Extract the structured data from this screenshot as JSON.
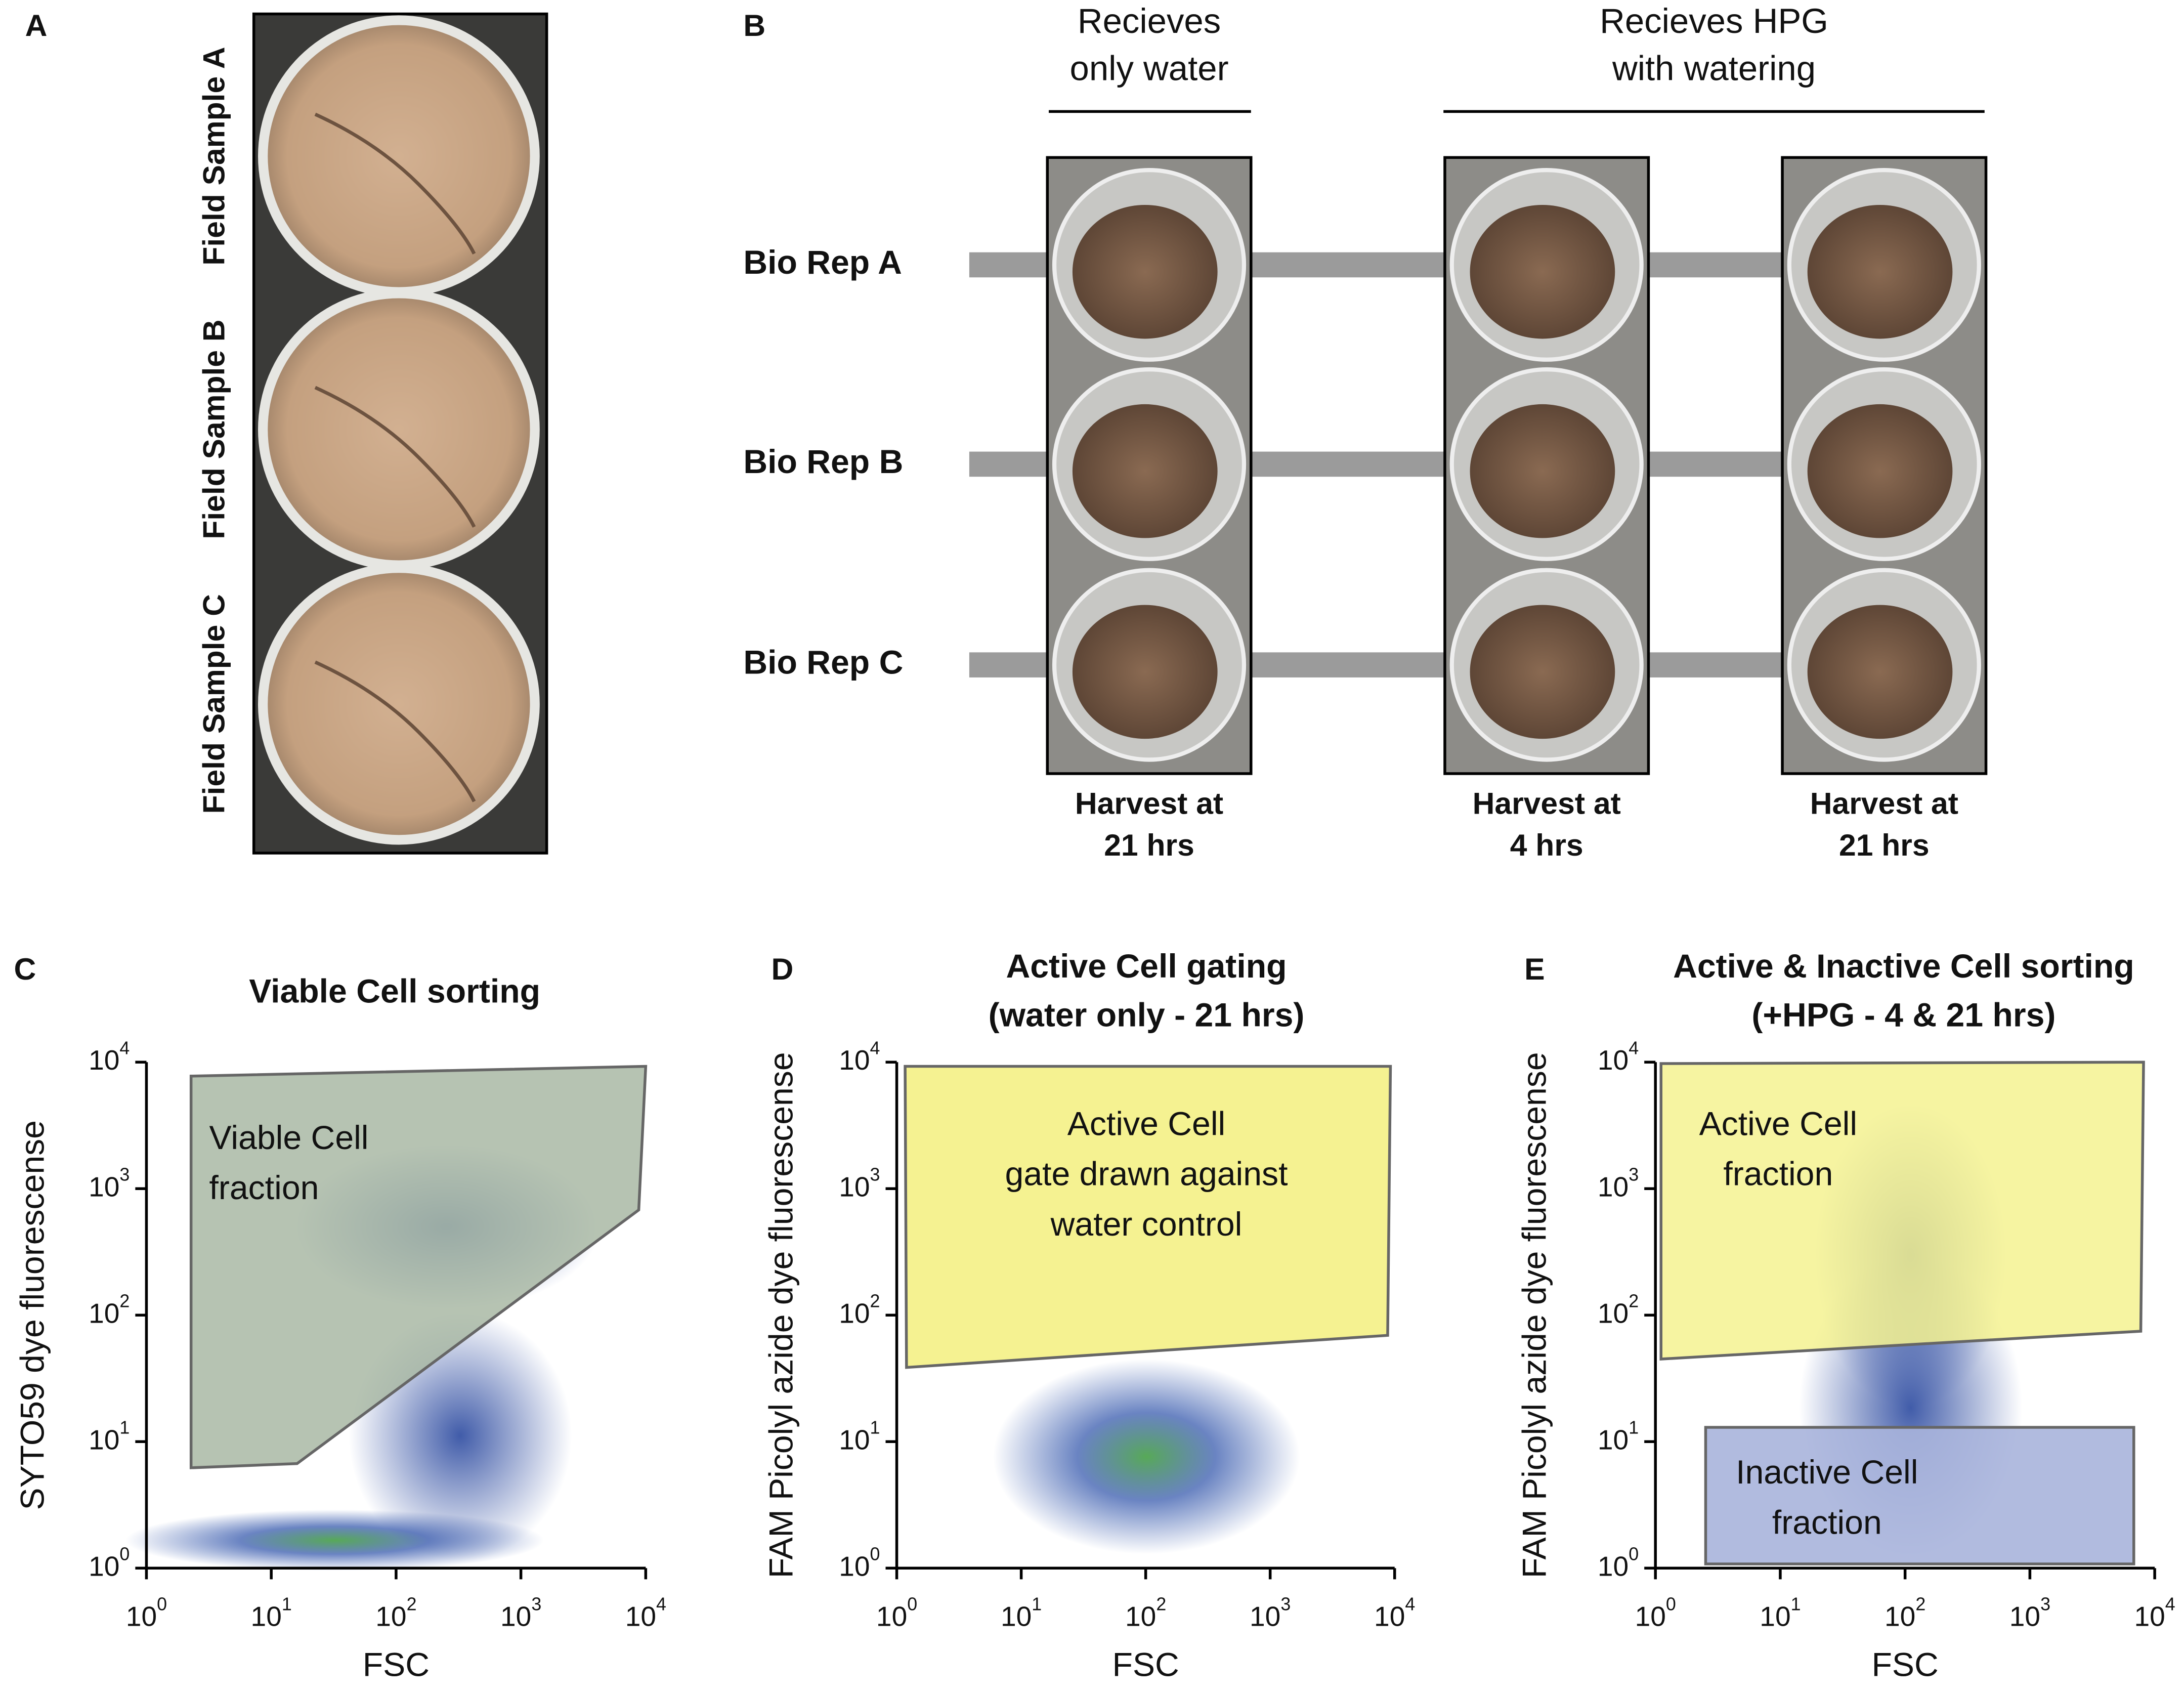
{
  "panel_a": {
    "label": "A",
    "samples": [
      "Field Sample A",
      "Field Sample B",
      "Field Sample C"
    ]
  },
  "panel_b": {
    "label": "B",
    "groups": [
      {
        "title": [
          "Recieves",
          "only water"
        ]
      },
      {
        "title": [
          "Recieves HPG",
          "with watering"
        ]
      }
    ],
    "rows": [
      "Bio Rep A",
      "Bio Rep B",
      "Bio Rep C"
    ],
    "harvests": [
      [
        "Harvest at",
        "21 hrs"
      ],
      [
        "Harvest at",
        "4 hrs"
      ],
      [
        "Harvest at",
        "21 hrs"
      ]
    ]
  },
  "plots": [
    {
      "label": "C",
      "title": [
        "Viable Cell sorting"
      ],
      "x_label": "FSC",
      "y_label": "SYTO59 dye fluorescense",
      "tick_base": "10",
      "x_ticks": [
        0,
        1,
        2,
        3,
        4
      ],
      "y_ticks": [
        0,
        1,
        2,
        3,
        4
      ],
      "gates": [
        {
          "text": [
            "Viable Cell",
            "fraction"
          ]
        }
      ]
    },
    {
      "label": "D",
      "title": [
        "Active Cell gating",
        "(water only - 21 hrs)"
      ],
      "x_label": "FSC",
      "y_label": "FAM Picolyl azide dye fluorescense",
      "tick_base": "10",
      "x_ticks": [
        0,
        1,
        2,
        3,
        4
      ],
      "y_ticks": [
        0,
        1,
        2,
        3,
        4
      ],
      "gates": [
        {
          "text": [
            "Active Cell",
            "gate drawn against",
            "water control"
          ]
        }
      ]
    },
    {
      "label": "E",
      "title": [
        "Active & Inactive Cell sorting",
        "(+HPG - 4 & 21 hrs)"
      ],
      "x_label": "FSC",
      "y_label": "FAM Picolyl azide dye fluorescense",
      "tick_base": "10",
      "x_ticks": [
        0,
        1,
        2,
        3,
        4
      ],
      "y_ticks": [
        0,
        1,
        2,
        3,
        4
      ],
      "gates": [
        {
          "text": [
            "Active Cell",
            "fraction"
          ]
        },
        {
          "text": [
            "Inactive Cell",
            "fraction"
          ]
        }
      ]
    }
  ]
}
